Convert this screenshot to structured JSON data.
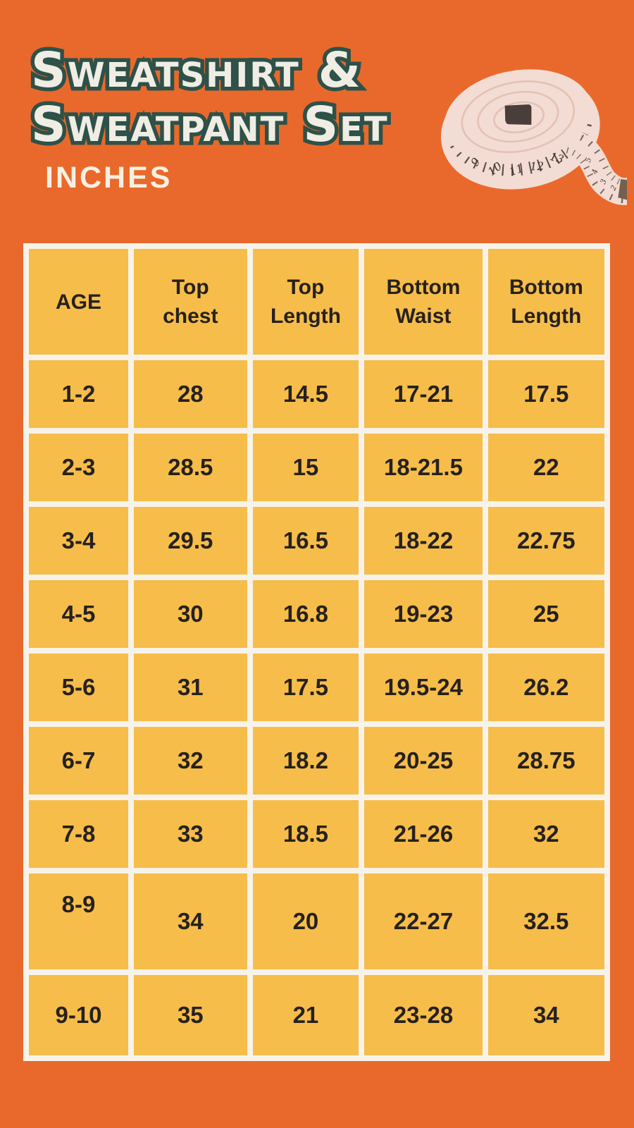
{
  "header": {
    "title_line1": "Sweatshirt &",
    "title_line2": "Sweatpant Set",
    "unit_label": "INCHES"
  },
  "table": {
    "columns": [
      "AGE",
      "Top\nchest",
      "Top\nLength",
      "Bottom\nWaist",
      "Bottom\nLength"
    ],
    "rows": [
      [
        "1-2",
        "28",
        "14.5",
        "17-21",
        "17.5"
      ],
      [
        "2-3",
        "28.5",
        "15",
        "18-21.5",
        "22"
      ],
      [
        "3-4",
        "29.5",
        "16.5",
        "18-22",
        "22.75"
      ],
      [
        "4-5",
        "30",
        "16.8",
        "19-23",
        "25"
      ],
      [
        "5-6",
        "31",
        "17.5",
        "19.5-24",
        "26.2"
      ],
      [
        "6-7",
        "32",
        "18.2",
        "20-25",
        "28.75"
      ],
      [
        "7-8",
        "33",
        "18.5",
        "21-26",
        "32"
      ],
      [
        "8-9",
        "34",
        "20",
        "22-27",
        "32.5"
      ],
      [
        "9-10",
        "35",
        "21",
        "23-28",
        "34"
      ]
    ]
  },
  "tape": {
    "roll_numbers": [
      "9",
      "10",
      "11",
      "12",
      "13"
    ],
    "tail_numbers": [
      "5",
      "4",
      "3",
      "2",
      "1"
    ]
  },
  "chart_data": {
    "type": "table",
    "title": "Sweatshirt & Sweatpant Set size chart (inches)",
    "columns": [
      "AGE",
      "Top chest",
      "Top Length",
      "Bottom Waist",
      "Bottom Length"
    ],
    "rows": [
      [
        "1-2",
        "28",
        "14.5",
        "17-21",
        "17.5"
      ],
      [
        "2-3",
        "28.5",
        "15",
        "18-21.5",
        "22"
      ],
      [
        "3-4",
        "29.5",
        "16.5",
        "18-22",
        "22.75"
      ],
      [
        "4-5",
        "30",
        "16.8",
        "19-23",
        "25"
      ],
      [
        "5-6",
        "31",
        "17.5",
        "19.5-24",
        "26.2"
      ],
      [
        "6-7",
        "32",
        "18.2",
        "20-25",
        "28.75"
      ],
      [
        "7-8",
        "33",
        "18.5",
        "21-26",
        "32"
      ],
      [
        "8-9",
        "34",
        "20",
        "22-27",
        "32.5"
      ],
      [
        "9-10",
        "35",
        "21",
        "23-28",
        "34"
      ]
    ]
  },
  "colors": {
    "background": "#E9692C",
    "cell_fill": "#F6BD4A",
    "grid_line": "#F8F3EA",
    "cell_text": "#26211E",
    "title_fill": "#EFEDE4",
    "title_outline": "#2E5148",
    "unit_text": "#F7F0E2",
    "tape_body": "#F3DCD3",
    "tape_marks": "#3E3833",
    "tape_end_tab": "#73604F"
  }
}
